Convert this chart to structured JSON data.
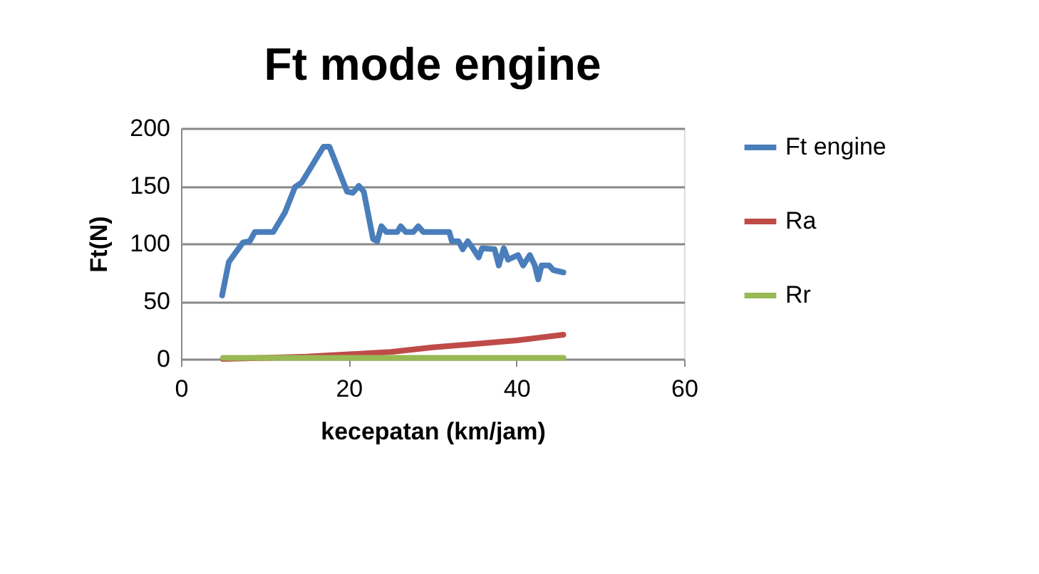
{
  "chart_data": {
    "type": "line",
    "title": "Ft mode engine",
    "xlabel": "kecepatan (km/jam)",
    "ylabel": "Ft(N)",
    "xlim": [
      0,
      60
    ],
    "xticks": [
      0,
      20,
      40,
      60
    ],
    "ylim": [
      0,
      200
    ],
    "yticks": [
      0,
      50,
      100,
      150,
      200
    ],
    "grid": "y",
    "legend": "right",
    "marker": "none",
    "line_style": "solid",
    "series": [
      {
        "name": "Ft engine",
        "color": "#4a7ebb",
        "x": [
          4.9,
          5.7,
          6.5,
          7.4,
          8.2,
          8.8,
          11.0,
          12.4,
          13.6,
          14.4,
          17.0,
          17.7,
          19.8,
          20.5,
          21.2,
          21.8,
          22.9,
          23.4,
          23.9,
          24.5,
          25.8,
          26.2,
          26.8,
          27.7,
          28.3,
          28.9,
          32.0,
          32.3,
          33.1,
          33.6,
          34.2,
          34.8,
          35.5,
          35.9,
          37.4,
          37.9,
          38.5,
          39.0,
          40.2,
          40.8,
          41.6,
          42.2,
          42.6,
          43.0,
          43.9,
          44.4,
          45.6
        ],
        "values": [
          55,
          84,
          92,
          101,
          102,
          110,
          110,
          127,
          149,
          153,
          184,
          184,
          145,
          144,
          150,
          145,
          104,
          102,
          115,
          110,
          110,
          115,
          110,
          110,
          115,
          110,
          110,
          102,
          102,
          95,
          102,
          96,
          88,
          96,
          95,
          81,
          96,
          86,
          90,
          81,
          90,
          81,
          69,
          81,
          81,
          77,
          75
        ]
      },
      {
        "name": "Ra",
        "color": "#be4b48",
        "x": [
          5,
          10,
          15,
          20,
          25,
          30,
          35,
          40,
          45.6
        ],
        "values": [
          0,
          1,
          2,
          4,
          6,
          10,
          13,
          16,
          21
        ]
      },
      {
        "name": "Rr",
        "color": "#98b954",
        "x": [
          5,
          45.6
        ],
        "values": [
          1,
          1
        ]
      }
    ]
  }
}
